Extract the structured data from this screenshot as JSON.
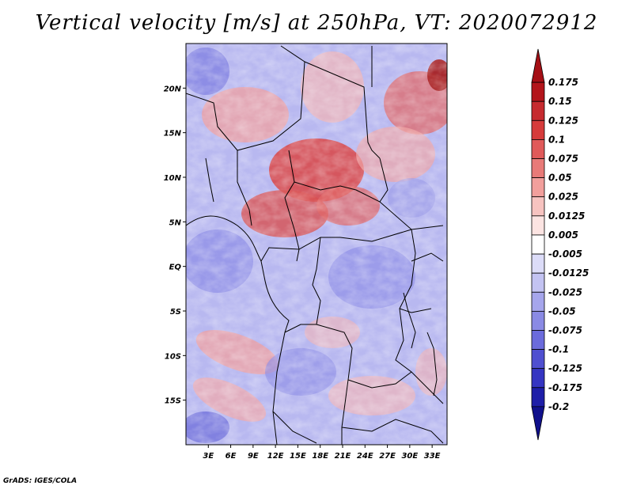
{
  "title": "Vertical velocity [m/s] at 250hPa, VT: 2020072912",
  "footer": "GrADS: IGES/COLA",
  "map": {
    "lat_labels": [
      "20N",
      "15N",
      "10N",
      "5N",
      "EQ",
      "5S",
      "10S",
      "15S"
    ],
    "lat_values": [
      20,
      15,
      10,
      5,
      0,
      -5,
      -10,
      -15
    ],
    "lon_labels": [
      "3E",
      "6E",
      "9E",
      "12E",
      "15E",
      "18E",
      "21E",
      "24E",
      "27E",
      "30E",
      "33E"
    ],
    "lon_values": [
      3,
      6,
      9,
      12,
      15,
      18,
      21,
      24,
      27,
      30,
      33
    ],
    "lon_range": [
      0,
      35
    ],
    "lat_range": [
      -20,
      25
    ]
  },
  "colorbar": {
    "labels": [
      "0.175",
      "0.15",
      "0.125",
      "0.1",
      "0.075",
      "0.05",
      "0.025",
      "0.0125",
      "0.005",
      "-0.005",
      "-0.0125",
      "-0.025",
      "-0.05",
      "-0.075",
      "-0.1",
      "-0.125",
      "-0.175",
      "-0.2"
    ],
    "colors": [
      "#a50f15",
      "#b3151b",
      "#c62a2f",
      "#d63b3b",
      "#e05a5a",
      "#e87a78",
      "#f29f9c",
      "#f7c3c0",
      "#fce4e2",
      "#ffffff",
      "#dcdcf8",
      "#c3c3f2",
      "#a6a6ec",
      "#8a8ae4",
      "#6b6bdc",
      "#4f4fd0",
      "#3535c2",
      "#1e1ea8",
      "#10108c"
    ]
  }
}
